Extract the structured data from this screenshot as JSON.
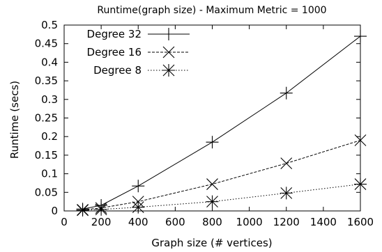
{
  "chart_data": {
    "type": "line",
    "title": "Runtime(graph size) - Maximum Metric = 1000",
    "xlabel": "Graph size (# vertices)",
    "ylabel": "Runtime (secs)",
    "xlim": [
      0,
      1600
    ],
    "ylim": [
      0,
      0.5
    ],
    "xticks": [
      0,
      200,
      400,
      600,
      800,
      1000,
      1200,
      1400,
      1600
    ],
    "yticks": [
      0,
      0.05,
      0.1,
      0.15,
      0.2,
      0.25,
      0.3,
      0.35,
      0.4,
      0.45,
      0.5
    ],
    "ytick_labels": [
      "0",
      "0.05",
      "0.1",
      "0.15",
      "0.2",
      "0.25",
      "0.3",
      "0.35",
      "0.4",
      "0.45",
      "0.5"
    ],
    "grid": false,
    "legend_position": "top-left",
    "series": [
      {
        "name": "Degree 32",
        "line_style": "solid",
        "marker": "plus",
        "x": [
          100,
          200,
          400,
          800,
          1200,
          1600
        ],
        "y": [
          0.005,
          0.015,
          0.067,
          0.185,
          0.317,
          0.47
        ]
      },
      {
        "name": "Degree 16",
        "line_style": "dashed",
        "marker": "cross",
        "x": [
          100,
          200,
          400,
          800,
          1200,
          1600
        ],
        "y": [
          0.003,
          0.008,
          0.025,
          0.072,
          0.128,
          0.19
        ]
      },
      {
        "name": "Degree 8",
        "line_style": "dotted",
        "marker": "asterisk",
        "x": [
          100,
          200,
          400,
          800,
          1200,
          1600
        ],
        "y": [
          0.002,
          0.004,
          0.01,
          0.025,
          0.048,
          0.072
        ]
      }
    ]
  }
}
